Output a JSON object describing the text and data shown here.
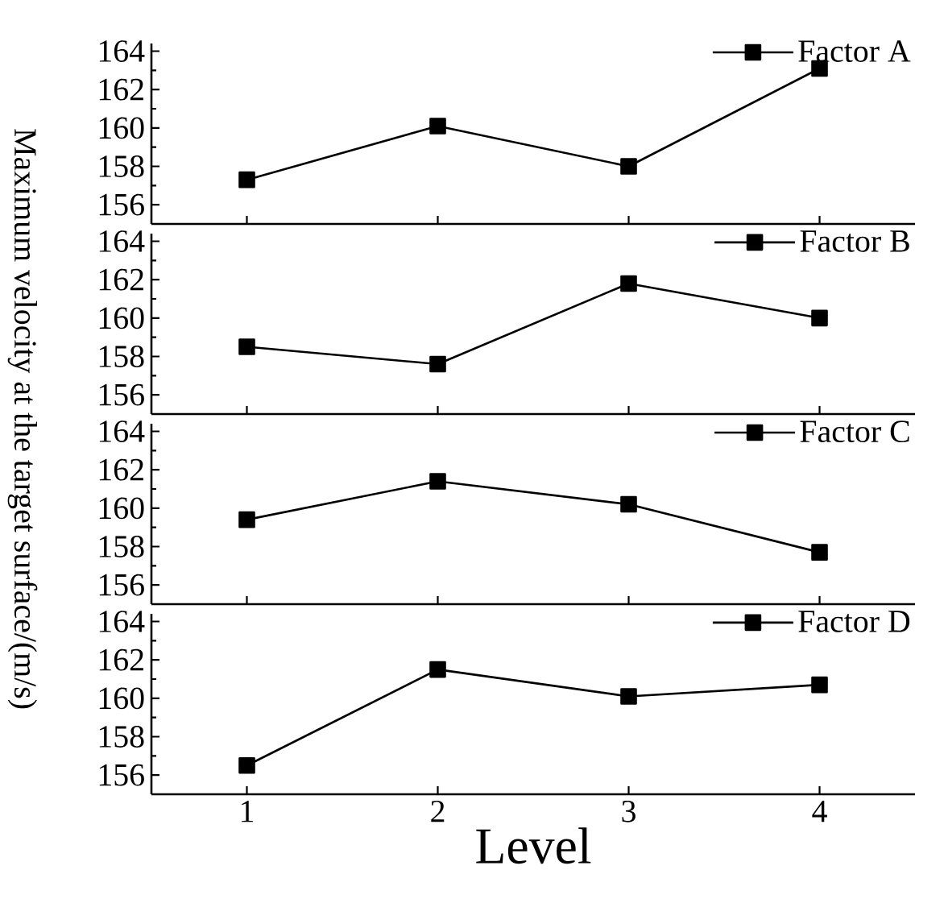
{
  "chart_data": [
    {
      "type": "line",
      "ylabel": "Maximum velocity at the target surface/(m/s)",
      "xlim": [
        0.5,
        4.5
      ],
      "xticks": [
        1,
        2,
        3,
        4
      ],
      "ylim": [
        155,
        164.4
      ],
      "yticks": [
        156,
        158,
        160,
        162,
        164
      ],
      "tick_labels": "y",
      "legend": "top right",
      "marker": "square",
      "line_style": "solid",
      "x": [
        1,
        2,
        3,
        4
      ],
      "series": [
        {
          "name": "Factor A",
          "color": "#000000",
          "values": [
            157.3,
            160.1,
            158.0,
            163.1
          ]
        }
      ]
    },
    {
      "type": "line",
      "xlim": [
        0.5,
        4.5
      ],
      "xticks": [
        1,
        2,
        3,
        4
      ],
      "ylim": [
        155,
        164.4
      ],
      "yticks": [
        156,
        158,
        160,
        162,
        164
      ],
      "tick_labels": "y",
      "legend": "top right",
      "marker": "square",
      "line_style": "solid",
      "x": [
        1,
        2,
        3,
        4
      ],
      "series": [
        {
          "name": "Factor B",
          "color": "#000000",
          "values": [
            158.5,
            157.6,
            161.8,
            160.0
          ]
        }
      ]
    },
    {
      "type": "line",
      "xlim": [
        0.5,
        4.5
      ],
      "xticks": [
        1,
        2,
        3,
        4
      ],
      "ylim": [
        155,
        164.4
      ],
      "yticks": [
        156,
        158,
        160,
        162,
        164
      ],
      "tick_labels": "y",
      "legend": "top right",
      "marker": "square",
      "line_style": "solid",
      "x": [
        1,
        2,
        3,
        4
      ],
      "series": [
        {
          "name": "Factor C",
          "color": "#000000",
          "values": [
            159.4,
            161.4,
            160.2,
            157.7
          ]
        }
      ]
    },
    {
      "type": "line",
      "xlabel": "Level",
      "xlim": [
        0.5,
        4.5
      ],
      "xticks": [
        1,
        2,
        3,
        4
      ],
      "ylim": [
        155,
        164.4
      ],
      "yticks": [
        156,
        158,
        160,
        162,
        164
      ],
      "legend": "top right",
      "marker": "square",
      "line_style": "solid",
      "x": [
        1,
        2,
        3,
        4
      ],
      "series": [
        {
          "name": "Factor D",
          "color": "#000000",
          "values": [
            156.5,
            161.5,
            160.1,
            160.7
          ]
        }
      ]
    }
  ]
}
